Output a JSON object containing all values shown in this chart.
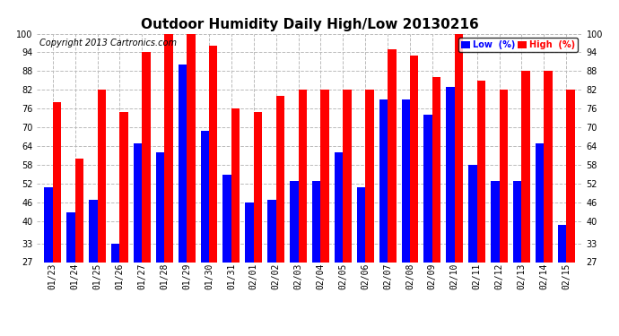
{
  "title": "Outdoor Humidity Daily High/Low 20130216",
  "copyright": "Copyright 2013 Cartronics.com",
  "dates": [
    "01/23",
    "01/24",
    "01/25",
    "01/26",
    "01/27",
    "01/28",
    "01/29",
    "01/30",
    "01/31",
    "02/01",
    "02/02",
    "02/03",
    "02/04",
    "02/05",
    "02/06",
    "02/07",
    "02/08",
    "02/09",
    "02/10",
    "02/11",
    "02/12",
    "02/13",
    "02/14",
    "02/15"
  ],
  "high": [
    78,
    60,
    82,
    75,
    94,
    100,
    100,
    96,
    76,
    75,
    80,
    82,
    82,
    82,
    82,
    95,
    93,
    86,
    100,
    85,
    82,
    88,
    88,
    82
  ],
  "low": [
    51,
    43,
    47,
    33,
    65,
    62,
    90,
    69,
    55,
    46,
    47,
    53,
    53,
    62,
    51,
    79,
    79,
    74,
    83,
    58,
    53,
    53,
    65,
    39
  ],
  "ylim_min": 27,
  "ylim_max": 100,
  "yticks": [
    27,
    33,
    40,
    46,
    52,
    58,
    64,
    70,
    76,
    82,
    88,
    94,
    100
  ],
  "bar_width": 0.38,
  "high_color": "#ff0000",
  "low_color": "#0000ff",
  "bg_color": "#ffffff",
  "grid_color": "#bbbbbb",
  "title_fontsize": 11,
  "tick_fontsize": 7,
  "copyright_fontsize": 7,
  "legend_low_label": "Low  (%)",
  "legend_high_label": "High  (%)"
}
